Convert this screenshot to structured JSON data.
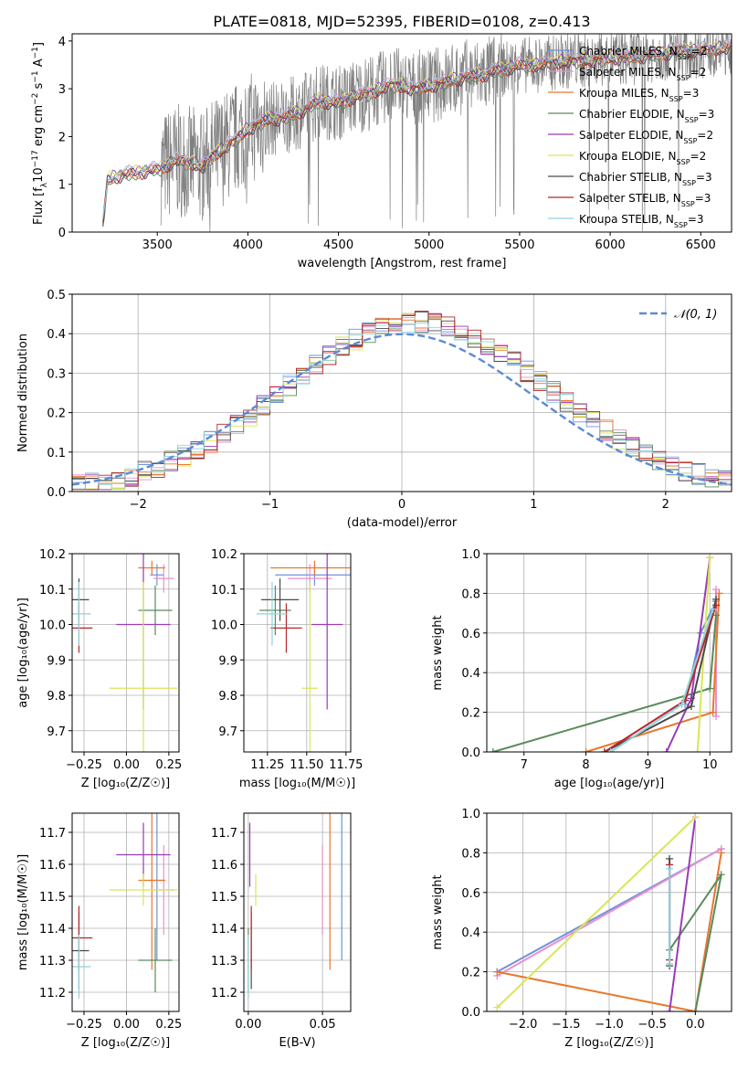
{
  "figure_title": "PLATE=0818, MJD=52395, FIBERID=0108, z=0.413",
  "colors": {
    "Chabrier MILES": "#6f93d8",
    "Salpeter MILES": "#e98fd0",
    "Kroupa MILES": "#e9772d",
    "Chabrier ELODIE": "#5a8a5c",
    "Salpeter ELODIE": "#9a3bb5",
    "Kroupa ELODIE": "#d9e555",
    "Chabrier STELIB": "#4a4a4a",
    "Salpeter STELIB": "#b8262b",
    "Kroupa STELIB": "#8fd2dc",
    "data": "#808080",
    "gaussian": "#5b8ad6"
  },
  "chart_data": [
    {
      "id": "spectrum",
      "type": "line",
      "xlabel": "wavelength [Angstrom, rest frame]",
      "ylabel_parts": [
        "Flux [f",
        "λ",
        "10",
        "−17",
        " erg cm",
        "−2",
        " s",
        "−1",
        " A",
        "−1",
        "]"
      ],
      "xlim": [
        3030,
        6670
      ],
      "ylim": [
        0,
        4.15
      ],
      "xticks": [
        3500,
        4000,
        4500,
        5000,
        5500,
        6000,
        6500
      ],
      "yticks": [
        0,
        1,
        2,
        3,
        4
      ],
      "legend_position": "top-right",
      "legend": [
        {
          "model": "Chabrier MILES",
          "label": "Chabrier MILES, N",
          "sub": "SSP",
          "suffix": "=2"
        },
        {
          "model": "Salpeter MILES",
          "label": "Salpeter MILES, N",
          "sub": "SSP",
          "suffix": "=2"
        },
        {
          "model": "Kroupa MILES",
          "label": "Kroupa MILES, N",
          "sub": "SSP",
          "suffix": "=3"
        },
        {
          "model": "Chabrier ELODIE",
          "label": "Chabrier ELODIE, N",
          "sub": "SSP",
          "suffix": "=3"
        },
        {
          "model": "Salpeter ELODIE",
          "label": "Salpeter ELODIE, N",
          "sub": "SSP",
          "suffix": "=2"
        },
        {
          "model": "Kroupa ELODIE",
          "label": "Kroupa ELODIE, N",
          "sub": "SSP",
          "suffix": "=2"
        },
        {
          "model": "Chabrier STELIB",
          "label": "Chabrier STELIB, N",
          "sub": "SSP",
          "suffix": "=3"
        },
        {
          "model": "Salpeter STELIB",
          "label": "Salpeter STELIB, N",
          "sub": "SSP",
          "suffix": "=3"
        },
        {
          "model": "Kroupa STELIB",
          "label": "Kroupa STELIB, N",
          "sub": "SSP",
          "suffix": "=3"
        }
      ],
      "continuum_knots": {
        "x": [
          3200,
          3225,
          3300,
          3400,
          3450,
          3500,
          3600,
          3700,
          3750,
          3800,
          3850,
          3900,
          3950,
          4000,
          4100,
          4200,
          4300,
          4400,
          4500,
          4600,
          4700,
          4800,
          4900,
          5000,
          5100,
          5200,
          5300,
          5400,
          5500,
          5600,
          5700,
          5800,
          5900,
          6000,
          6100,
          6200,
          6300,
          6400,
          6500,
          6600
        ],
        "y": [
          0.15,
          1.1,
          1.2,
          1.25,
          1.3,
          1.3,
          1.5,
          1.45,
          1.35,
          1.6,
          1.7,
          1.85,
          2.0,
          2.15,
          2.35,
          2.4,
          2.55,
          2.75,
          2.7,
          2.85,
          2.95,
          3.1,
          3.0,
          3.05,
          3.15,
          3.25,
          3.3,
          3.4,
          3.5,
          3.5,
          3.55,
          3.6,
          3.6,
          3.65,
          3.65,
          3.7,
          3.75,
          3.8,
          3.8,
          3.85
        ]
      },
      "data_start": 3520
    },
    {
      "id": "residuals",
      "type": "histogram",
      "xlabel": "(data-model)/error",
      "ylabel": "Normed distribution",
      "xlim": [
        -2.5,
        2.5
      ],
      "ylim": [
        0,
        0.5
      ],
      "xticks": [
        -2,
        -1,
        0,
        1,
        2
      ],
      "yticks": [
        0.0,
        0.1,
        0.2,
        0.3,
        0.4,
        0.5
      ],
      "grid": true,
      "legend_position": "top-right",
      "gaussian_label": "𝒩(0, 1)",
      "bin_width": 0.1,
      "bin_start": -2.5
    },
    {
      "id": "z-age",
      "type": "errorbar",
      "xlabel": "Z [log₁₀(Z/Z☉)]",
      "ylabel": "age  [log₁₀(age/yr)]",
      "xlim": [
        -0.32,
        0.31
      ],
      "ylim": [
        9.64,
        10.2
      ],
      "xticks": [
        -0.25,
        0.0,
        0.25
      ],
      "xticklabels": [
        "−0.25",
        "0.00",
        "0.25"
      ],
      "yticks": [
        9.7,
        9.8,
        9.9,
        10.0,
        10.1,
        10.2
      ],
      "grid": true
    },
    {
      "id": "mass-age",
      "type": "errorbar",
      "xlabel": "mass [log₁₀(M/M☉)]",
      "xlim": [
        11.1,
        11.78
      ],
      "ylim": [
        9.64,
        10.2
      ],
      "xticks": [
        11.25,
        11.5,
        11.75
      ],
      "xticklabels": [
        "11.25",
        "11.50",
        "11.75"
      ],
      "yticks": [
        9.7,
        9.8,
        9.9,
        10.0,
        10.1,
        10.2
      ],
      "grid": true
    },
    {
      "id": "age-weight",
      "type": "line",
      "xlabel": "age  [log₁₀(age/yr)]",
      "ylabel": "mass weight",
      "xlim": [
        6.4,
        10.35
      ],
      "ylim": [
        0,
        1
      ],
      "xticks": [
        7,
        8,
        9,
        10
      ],
      "yticks": [
        0.0,
        0.2,
        0.4,
        0.6,
        0.8,
        1.0
      ],
      "grid": true
    },
    {
      "id": "z-mass",
      "type": "errorbar",
      "xlabel": "Z [log₁₀(Z/Z☉)]",
      "ylabel": "mass [log₁₀(M/M☉)]",
      "xlim": [
        -0.32,
        0.31
      ],
      "ylim": [
        11.14,
        11.76
      ],
      "xticks": [
        -0.25,
        0.0,
        0.25
      ],
      "xticklabels": [
        "−0.25",
        "0.00",
        "0.25"
      ],
      "yticks": [
        11.2,
        11.3,
        11.4,
        11.5,
        11.6,
        11.7
      ],
      "grid": true
    },
    {
      "id": "ebv-mass",
      "type": "errorbar",
      "xlabel": "E(B-V)",
      "xlim": [
        -0.003,
        0.069
      ],
      "ylim": [
        11.14,
        11.76
      ],
      "xticks": [
        0.0,
        0.05
      ],
      "xticklabels": [
        "0.00",
        "0.05"
      ],
      "yticks": [
        11.2,
        11.3,
        11.4,
        11.5,
        11.6,
        11.7
      ],
      "grid": true
    },
    {
      "id": "zmet-weight",
      "type": "line",
      "xlabel": "Z [log₁₀(Z/Z☉)]",
      "ylabel": "mass weight",
      "xlim": [
        -2.42,
        0.42
      ],
      "ylim": [
        0,
        1
      ],
      "xticks": [
        -2.0,
        -1.5,
        -1.0,
        -0.5,
        0.0
      ],
      "xticklabels": [
        "−2.0",
        "−1.5",
        "−1.0",
        "−0.5",
        "0.0"
      ],
      "yticks": [
        0.0,
        0.2,
        0.4,
        0.6,
        0.8,
        1.0
      ],
      "grid": true
    }
  ],
  "models": [
    {
      "name": "Chabrier MILES",
      "Z": 0.18,
      "Zerr": 0.04,
      "age": 10.14,
      "ageerr": 0.03,
      "mass": 11.55,
      "masserr": 0.25,
      "ebv": 0.063,
      "age_w": [
        [
          9.6,
          0.24
        ],
        [
          9.85,
          0.6
        ],
        [
          10.1,
          0.76
        ]
      ],
      "z_w": [
        [
          -2.3,
          0.2
        ],
        [
          0.3,
          0.82
        ]
      ]
    },
    {
      "name": "Salpeter MILES",
      "Z": 0.22,
      "Zerr": 0.06,
      "age": 10.13,
      "ageerr": 0.04,
      "mass": 11.52,
      "masserr": 0.14,
      "ebv": 0.05,
      "age_w": [
        [
          10.1,
          0.18
        ],
        [
          10.1,
          0.82
        ]
      ],
      "z_w": [
        [
          -2.3,
          0.18
        ],
        [
          0.3,
          0.82
        ]
      ]
    },
    {
      "name": "Kroupa MILES",
      "Z": 0.15,
      "Zerr": 0.08,
      "age": 10.16,
      "ageerr": 0.02,
      "mass": 11.55,
      "masserr": 0.28,
      "ebv": 0.055,
      "age_w": [
        [
          8.0,
          0.0
        ],
        [
          10.05,
          0.2
        ],
        [
          10.15,
          0.8
        ]
      ],
      "z_w": [
        [
          0.3,
          0.8
        ],
        [
          0.0,
          0.0
        ],
        [
          -2.3,
          0.2
        ]
      ]
    },
    {
      "name": "Chabrier ELODIE",
      "Z": 0.17,
      "Zerr": 0.1,
      "age": 10.04,
      "ageerr": 0.07,
      "mass": 11.3,
      "masserr": 0.1,
      "ebv": 0.0,
      "age_w": [
        [
          6.5,
          0.0
        ],
        [
          10.0,
          0.32
        ],
        [
          10.1,
          0.69
        ]
      ],
      "z_w": [
        [
          0.0,
          0.0
        ],
        [
          0.3,
          0.69
        ],
        [
          -0.3,
          0.31
        ]
      ]
    },
    {
      "name": "Salpeter ELODIE",
      "Z": 0.1,
      "Zerr": 0.16,
      "age": 10.0,
      "ageerr": 0.24,
      "mass": 11.63,
      "masserr": 0.1,
      "ebv": 0.001,
      "age_w": [
        [
          9.3,
          0.0
        ],
        [
          9.7,
          0.27
        ],
        [
          10.0,
          0.98
        ]
      ],
      "z_w": [
        [
          -0.3,
          0.0
        ],
        [
          0.0,
          0.98
        ]
      ]
    },
    {
      "name": "Kroupa ELODIE",
      "Z": 0.1,
      "Zerr": 0.2,
      "age": 9.82,
      "ageerr": 0.3,
      "mass": 11.52,
      "masserr": 0.05,
      "ebv": 0.005,
      "age_w": [
        [
          9.8,
          0.0
        ],
        [
          10.0,
          0.98
        ]
      ],
      "z_w": [
        [
          -2.3,
          0.02
        ],
        [
          0.0,
          0.98
        ]
      ]
    },
    {
      "name": "Chabrier STELIB",
      "Z": -0.28,
      "Zerr": 0.06,
      "age": 10.07,
      "ageerr": 0.06,
      "mass": 11.33,
      "masserr": 0.12,
      "ebv": 0.002,
      "age_w": [
        [
          8.3,
          0.0
        ],
        [
          9.7,
          0.23
        ],
        [
          10.1,
          0.77
        ]
      ],
      "z_w": [
        [
          -0.3,
          0.23
        ],
        [
          -0.3,
          0.77
        ]
      ]
    },
    {
      "name": "Salpeter STELIB",
      "Z": -0.28,
      "Zerr": 0.08,
      "age": 9.99,
      "ageerr": 0.07,
      "mass": 11.37,
      "masserr": 0.1,
      "ebv": 0.002,
      "age_w": [
        [
          8.3,
          0.0
        ],
        [
          9.6,
          0.26
        ],
        [
          10.1,
          0.74
        ]
      ],
      "z_w": [
        [
          -0.3,
          0.26
        ],
        [
          -0.3,
          0.74
        ]
      ]
    },
    {
      "name": "Kroupa STELIB",
      "Z": -0.28,
      "Zerr": 0.07,
      "age": 10.03,
      "ageerr": 0.09,
      "mass": 11.28,
      "masserr": 0.1,
      "ebv": 0.0,
      "age_w": [
        [
          8.4,
          0.0
        ],
        [
          9.55,
          0.24
        ],
        [
          10.05,
          0.72
        ]
      ],
      "z_w": [
        [
          -0.3,
          0.24
        ],
        [
          -0.3,
          0.72
        ]
      ]
    }
  ]
}
